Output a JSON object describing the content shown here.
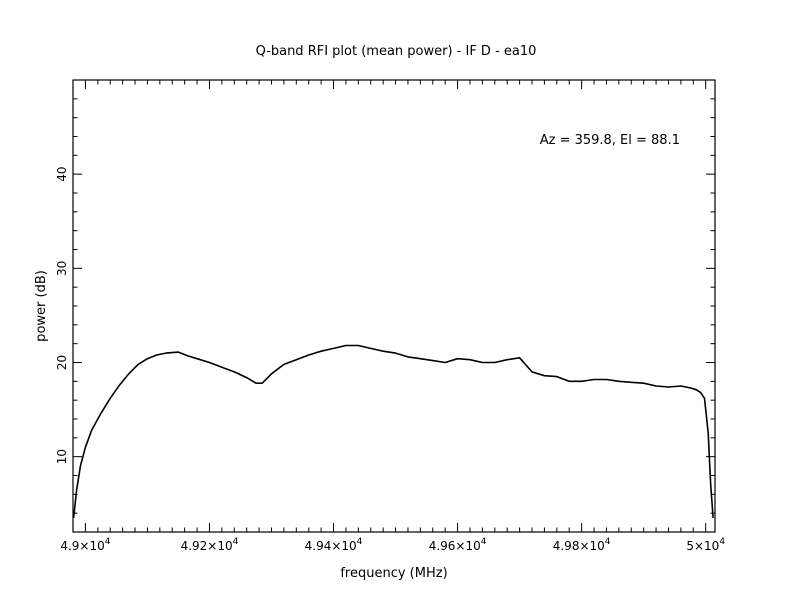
{
  "chart_data": {
    "type": "line",
    "title": "Q-band RFI plot (mean power) - IF D - ea10",
    "xlabel": "frequency (MHz)",
    "ylabel": "power (dB)",
    "annotation": "Az = 359.8, El = 88.1",
    "xlim": [
      48980,
      50015
    ],
    "ylim": [
      2,
      50
    ],
    "x_ticks": [
      {
        "value": 49000,
        "mantissa": "4.9",
        "exp": "4"
      },
      {
        "value": 49200,
        "mantissa": "4.92",
        "exp": "4"
      },
      {
        "value": 49400,
        "mantissa": "4.94",
        "exp": "4"
      },
      {
        "value": 49600,
        "mantissa": "4.96",
        "exp": "4"
      },
      {
        "value": 49800,
        "mantissa": "4.98",
        "exp": "4"
      },
      {
        "value": 50000,
        "mantissa": "5",
        "exp": "4"
      }
    ],
    "y_ticks": [
      10,
      20,
      30,
      40
    ],
    "grid": false,
    "line_color": "#000000",
    "series": [
      {
        "x": [
          48981,
          48986,
          48992,
          49000,
          49010,
          49025,
          49040,
          49055,
          49070,
          49085,
          49100,
          49115,
          49130,
          49150,
          49165,
          49180,
          49200,
          49220,
          49240,
          49260,
          49275,
          49285,
          49300,
          49320,
          49340,
          49360,
          49380,
          49400,
          49420,
          49440,
          49460,
          49480,
          49500,
          49520,
          49540,
          49560,
          49580,
          49600,
          49620,
          49640,
          49660,
          49680,
          49700,
          49720,
          49740,
          49760,
          49780,
          49800,
          49820,
          49840,
          49860,
          49880,
          49900,
          49920,
          49940,
          49960,
          49975,
          49985,
          49992,
          49998,
          50004,
          50008,
          50012
        ],
        "y": [
          3.5,
          6.5,
          9,
          11,
          12.8,
          14.6,
          16.2,
          17.6,
          18.8,
          19.8,
          20.4,
          20.8,
          21.0,
          21.1,
          20.7,
          20.4,
          20.0,
          19.5,
          19.0,
          18.4,
          17.8,
          17.8,
          18.8,
          19.8,
          20.3,
          20.8,
          21.2,
          21.5,
          21.8,
          21.8,
          21.5,
          21.2,
          21.0,
          20.6,
          20.4,
          20.2,
          20.0,
          20.4,
          20.3,
          20.0,
          20.0,
          20.3,
          20.5,
          19.0,
          18.6,
          18.5,
          18.0,
          18.0,
          18.2,
          18.2,
          18.0,
          17.9,
          17.8,
          17.5,
          17.4,
          17.5,
          17.3,
          17.1,
          16.8,
          16.2,
          12.5,
          7.0,
          3.5
        ]
      }
    ]
  }
}
